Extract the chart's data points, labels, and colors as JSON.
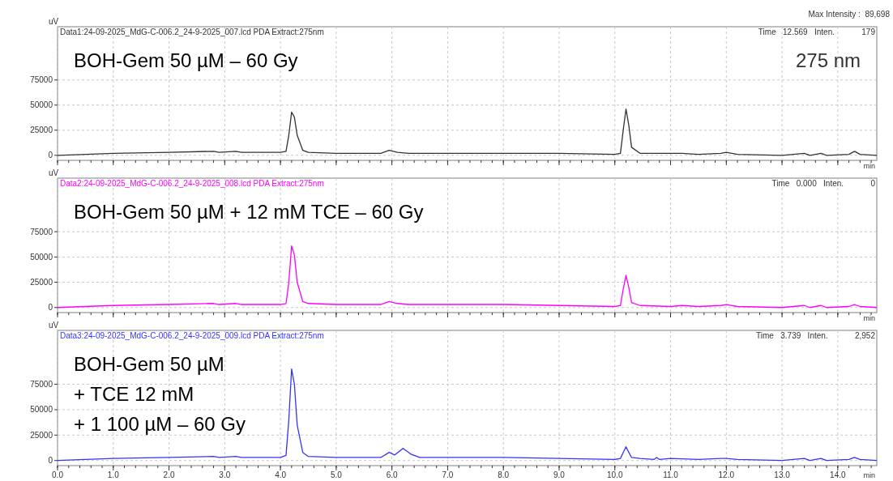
{
  "chart_data": [
    {
      "type": "line",
      "title": "BOH-Gem 50 µM – 60 Gy",
      "ylabel": "uV",
      "xlabel": "min",
      "annotations": [
        "Data1:24-09-2025_MdG-C-006.2_24-9-2025_007.lcd PDA Extract:275nm",
        "Time   12.569   Inten.            179",
        "Max Intensity :  89,698",
        "275 nm"
      ],
      "x": [
        0,
        0.5,
        1,
        2,
        2.8,
        2.9,
        3.2,
        3.3,
        4,
        4.1,
        4.15,
        4.2,
        4.25,
        4.3,
        4.4,
        4.5,
        5,
        5.8,
        5.95,
        6.1,
        6.3,
        8,
        9,
        10,
        10.1,
        10.15,
        10.2,
        10.25,
        10.3,
        10.45,
        11,
        11.2,
        11.5,
        11.9,
        12,
        12.2,
        13,
        13.4,
        13.5,
        13.7,
        13.8,
        14.2,
        14.3,
        14.4,
        14.7
      ],
      "series": [
        {
          "color": "#333333",
          "values": [
            0,
            1000,
            2000,
            3000,
            4000,
            3000,
            4000,
            3000,
            3000,
            4000,
            20000,
            43000,
            38000,
            20000,
            5000,
            3000,
            2000,
            2000,
            5000,
            3000,
            2000,
            2000,
            2000,
            1000,
            2000,
            25000,
            46000,
            30000,
            8000,
            2000,
            2000,
            2000,
            1000,
            2000,
            3000,
            1000,
            0,
            2000,
            0,
            2000,
            0,
            1000,
            4000,
            1000,
            0
          ]
        }
      ],
      "xlim": [
        0,
        14.7
      ],
      "ylim": [
        -5000,
        128000
      ],
      "yticks": [
        0,
        25000,
        50000,
        75000
      ],
      "xticks": [
        {
          "value": 0,
          "label": null
        },
        {
          "value": 1,
          "label": null
        },
        {
          "value": 2,
          "label": null
        },
        {
          "value": 3,
          "label": null
        },
        {
          "value": 4,
          "label": null
        },
        {
          "value": 5,
          "label": null
        },
        {
          "value": 6,
          "label": null
        },
        {
          "value": 7,
          "label": null
        },
        {
          "value": 8,
          "label": null
        },
        {
          "value": 9,
          "label": null
        },
        {
          "value": 10,
          "label": null
        },
        {
          "value": 11,
          "label": null
        },
        {
          "value": 12,
          "label": null
        },
        {
          "value": 13,
          "label": null
        },
        {
          "value": 14,
          "label": null
        }
      ],
      "tick_labels": "y",
      "grid": true
    },
    {
      "type": "line",
      "title": "BOH-Gem 50 µM + 12 mM TCE – 60 Gy",
      "ylabel": "uV",
      "xlabel": "min",
      "annotations": [
        "Data2:24-09-2025_MdG-C-006.2_24-9-2025_008.lcd PDA Extract:275nm",
        "Time   0.000   Inten.            0"
      ],
      "x": [
        0,
        0.5,
        1,
        2,
        2.8,
        2.9,
        3.2,
        3.3,
        4,
        4.1,
        4.15,
        4.2,
        4.25,
        4.3,
        4.4,
        4.5,
        5,
        5.8,
        5.95,
        6.1,
        6.3,
        8,
        9,
        10,
        10.1,
        10.15,
        10.2,
        10.25,
        10.3,
        10.45,
        11,
        11.2,
        11.5,
        11.9,
        12,
        12.2,
        13,
        13.4,
        13.5,
        13.7,
        13.8,
        14.2,
        14.3,
        14.4,
        14.7
      ],
      "series": [
        {
          "color": "#ff00ff",
          "values": [
            0,
            1000,
            2000,
            3000,
            4000,
            3000,
            4000,
            3000,
            3000,
            4000,
            25000,
            61000,
            52000,
            25000,
            6000,
            4000,
            3000,
            3000,
            6000,
            4000,
            3000,
            3000,
            2000,
            1000,
            2000,
            18000,
            32000,
            20000,
            5000,
            2000,
            1000,
            2000,
            1000,
            2000,
            3000,
            1000,
            0,
            2000,
            0,
            2000,
            0,
            1000,
            3000,
            1000,
            0
          ]
        }
      ],
      "xlim": [
        0,
        14.7
      ],
      "ylim": [
        -5000,
        128000
      ],
      "yticks": [
        0,
        25000,
        50000,
        75000
      ],
      "xticks": [
        {
          "value": 0,
          "label": null
        },
        {
          "value": 1,
          "label": null
        },
        {
          "value": 2,
          "label": null
        },
        {
          "value": 3,
          "label": null
        },
        {
          "value": 4,
          "label": null
        },
        {
          "value": 5,
          "label": null
        },
        {
          "value": 6,
          "label": null
        },
        {
          "value": 7,
          "label": null
        },
        {
          "value": 8,
          "label": null
        },
        {
          "value": 9,
          "label": null
        },
        {
          "value": 10,
          "label": null
        },
        {
          "value": 11,
          "label": null
        },
        {
          "value": 12,
          "label": null
        },
        {
          "value": 13,
          "label": null
        },
        {
          "value": 14,
          "label": null
        }
      ],
      "tick_labels": "y",
      "grid": true
    },
    {
      "type": "line",
      "title": "BOH-Gem 50 µM\n+ TCE 12 mM\n+ 1 100 µM – 60 Gy",
      "ylabel": "uV",
      "xlabel": "min",
      "annotations": [
        "Data3:24-09-2025_MdG-C-006.2_24-9-2025_009.lcd PDA Extract:275nm",
        "Time   3.739   Inten.            2,952"
      ],
      "x": [
        0,
        0.5,
        1,
        2,
        2.8,
        2.9,
        3.2,
        3.3,
        4,
        4.1,
        4.15,
        4.2,
        4.25,
        4.3,
        4.4,
        4.5,
        5,
        5.8,
        5.95,
        6.05,
        6.2,
        6.35,
        6.5,
        8,
        9,
        10,
        10.1,
        10.15,
        10.2,
        10.25,
        10.3,
        10.45,
        10.7,
        10.75,
        10.8,
        11,
        11.5,
        11.9,
        12,
        12.2,
        13,
        13.4,
        13.5,
        13.7,
        13.8,
        14.2,
        14.3,
        14.4,
        14.7
      ],
      "series": [
        {
          "color": "#3333ff",
          "values": [
            0,
            1000,
            2000,
            3000,
            4000,
            3000,
            4000,
            3000,
            3000,
            5000,
            40000,
            90000,
            75000,
            35000,
            8000,
            4000,
            3000,
            3000,
            8000,
            5500,
            12000,
            6000,
            3000,
            3000,
            2000,
            1000,
            2000,
            8000,
            13500,
            8000,
            3000,
            2000,
            1000,
            3000,
            1000,
            2000,
            1000,
            2000,
            2000,
            1000,
            0,
            2000,
            0,
            2000,
            0,
            1000,
            3000,
            1000,
            0
          ]
        }
      ],
      "xlim": [
        0,
        14.7
      ],
      "ylim": [
        -5000,
        128000
      ],
      "yticks": [
        0,
        25000,
        50000,
        75000
      ],
      "xticks": [
        {
          "value": 0,
          "label": "0.0"
        },
        {
          "value": 1,
          "label": "1.0"
        },
        {
          "value": 2,
          "label": "2.0"
        },
        {
          "value": 3,
          "label": "3.0"
        },
        {
          "value": 4,
          "label": "4.0"
        },
        {
          "value": 5,
          "label": "5.0"
        },
        {
          "value": 6,
          "label": "6.0"
        },
        {
          "value": 7,
          "label": "7.0"
        },
        {
          "value": 8,
          "label": "8.0"
        },
        {
          "value": 9,
          "label": "9.0"
        },
        {
          "value": 10,
          "label": "10.0"
        },
        {
          "value": 11,
          "label": "11.0"
        },
        {
          "value": 12,
          "label": "12.0"
        },
        {
          "value": 13,
          "label": "13.0"
        },
        {
          "value": 14,
          "label": "14.0"
        }
      ],
      "grid": true
    }
  ]
}
